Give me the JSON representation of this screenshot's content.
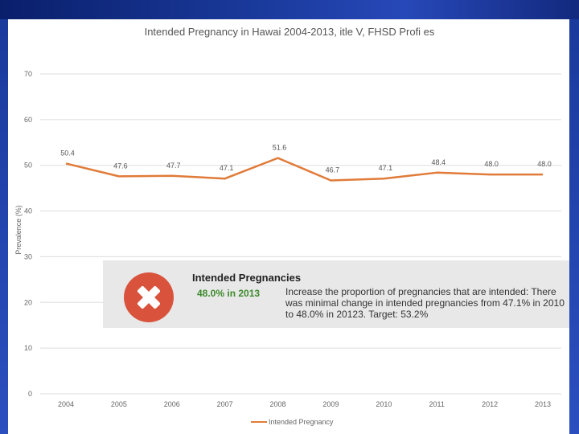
{
  "chart_data": {
    "type": "line",
    "title": "Intended Pregnancy in Hawai 2004-2013,   itle V, FHSD Profi es",
    "ylabel": "Prevalence (%)",
    "xlabel": "",
    "categories": [
      "2004",
      "2005",
      "2006",
      "2007",
      "2008",
      "2009",
      "2010",
      "2011",
      "2012",
      "2013"
    ],
    "series": [
      {
        "name": "Intended Pregnancy",
        "values": [
          50.4,
          47.6,
          47.7,
          47.1,
          51.6,
          46.7,
          47.1,
          48.4,
          48.0,
          48.0
        ],
        "labels": [
          "50.4",
          "47.6",
          "47.7",
          "47.1",
          "51.6",
          "46.7",
          "47.1",
          "48.4",
          "48.0",
          "48.0"
        ],
        "color": "#e07b39"
      }
    ],
    "ylim": [
      0,
      70
    ],
    "yticks": [
      0,
      10,
      20,
      30,
      40,
      50,
      60,
      70
    ],
    "ytick_labels": [
      "0",
      "10",
      "20",
      "30",
      "40",
      "50",
      "60",
      "70"
    ],
    "grid": true,
    "legend": "bottom"
  },
  "callout": {
    "title": "Intended Pregnancies",
    "value": "48.0% in 2013",
    "description": "Increase the proportion of pregnancies that are intended: There was minimal change in intended pregnancies from 47.1% in 2010 to 48.0% in 20123.  Target:  53.2%",
    "status_color": "#d9533c",
    "value_color": "#3d8a2c",
    "icon": "x-mark-icon"
  }
}
